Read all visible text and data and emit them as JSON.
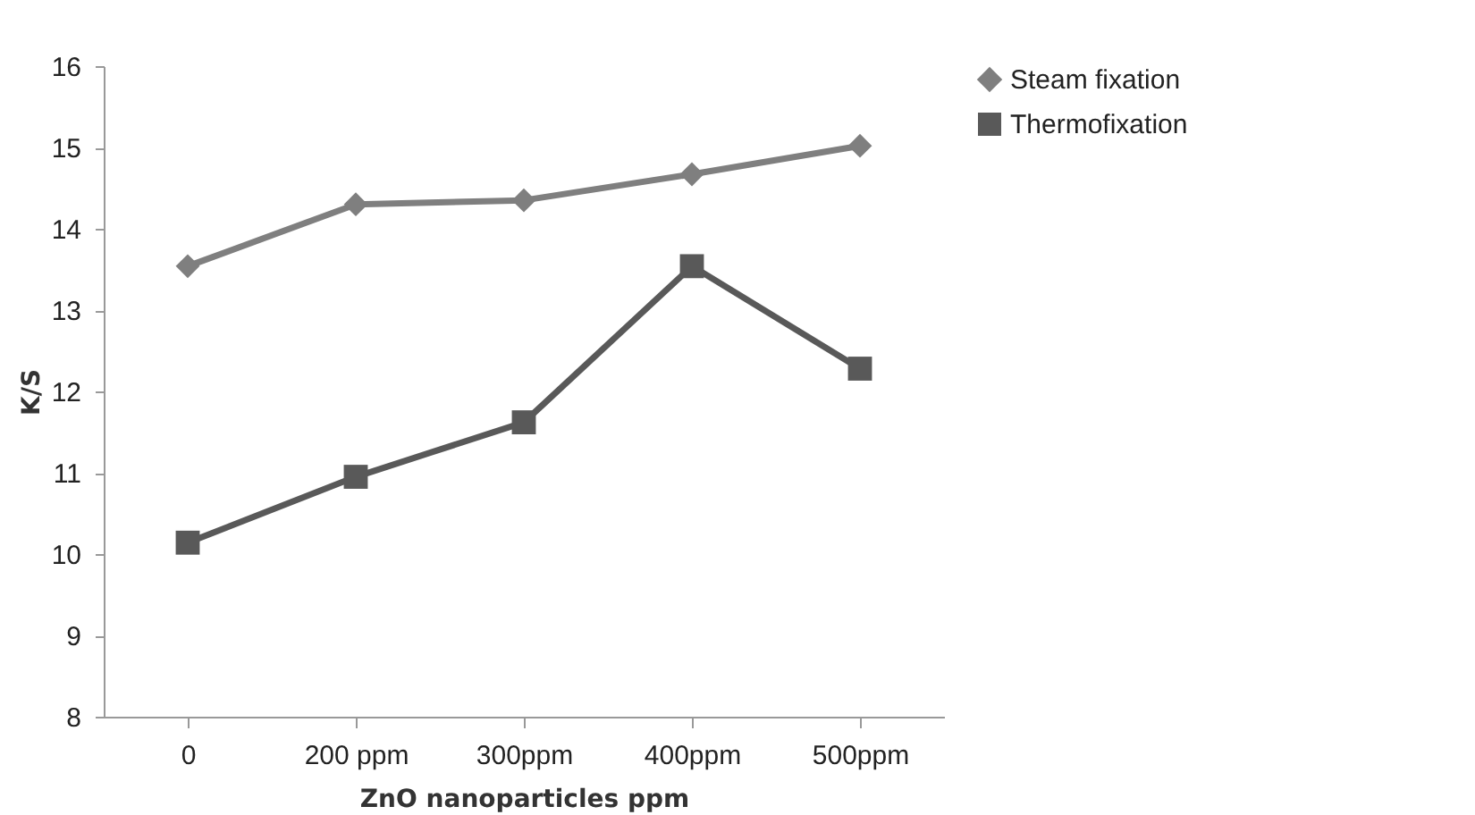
{
  "chart_data": {
    "type": "line",
    "xlabel": "ZnO nanoparticles ppm",
    "ylabel": "K/S",
    "categories": [
      "0",
      "200 ppm",
      "300ppm",
      "400ppm",
      "500ppm"
    ],
    "series": [
      {
        "name": "Steam fixation",
        "color": "#7f7f7f",
        "marker": "diamond",
        "values": [
          13.54,
          14.3,
          14.35,
          14.67,
          15.02
        ]
      },
      {
        "name": "Thermofixation",
        "color": "#595959",
        "marker": "square",
        "values": [
          10.14,
          10.95,
          11.62,
          13.54,
          12.28
        ]
      }
    ],
    "ylim": [
      8,
      16
    ],
    "yticks": [
      8,
      9,
      10,
      11,
      12,
      13,
      14,
      15,
      16
    ],
    "grid": false,
    "legend": "right",
    "line_style": "solid"
  }
}
